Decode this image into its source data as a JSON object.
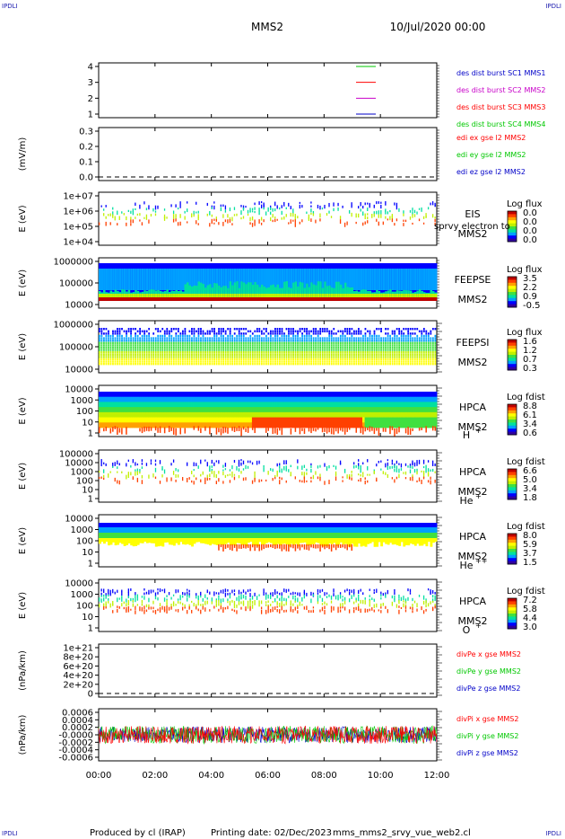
{
  "header": {
    "corner_tl": "IPDLI",
    "corner_tr": "IPDLI",
    "corner_bl": "IPDLI",
    "corner_br": "IPDLI",
    "title": "MMS2",
    "date": "10/Jul/2020 00:00"
  },
  "footer": {
    "produced_by": "Produced by cl (IRAP)",
    "printing_date": "Printing date: 02/Dec/2023",
    "filename": "mms_mms2_srvy_vue_web2.cl"
  },
  "colors": {
    "black": "#000000",
    "red": "#ff0000",
    "green": "#00c800",
    "blue": "#0000c8",
    "magenta": "#c800c8",
    "spectrum": [
      "#3000a0",
      "#0000ff",
      "#00a0ff",
      "#00e0a0",
      "#40e040",
      "#c0f000",
      "#ffff00",
      "#ffa000",
      "#ff4000",
      "#c00000"
    ]
  },
  "chart_data": [
    {
      "id": "desdist",
      "type": "line",
      "title": "",
      "yticks": [
        "1",
        "2",
        "3",
        "4"
      ],
      "ylabel": "",
      "xrange": [
        "00:00",
        "12:00"
      ],
      "series": [
        {
          "name": "des dist burst SC1 MMS1",
          "color": "green",
          "level": 4
        },
        {
          "name": "des dist burst SC2 MMS2",
          "color": "red",
          "level": 3
        },
        {
          "name": "des dist burst SC3 MMS3",
          "color": "magenta",
          "level": 2
        },
        {
          "name": "des dist burst SC4 MMS4",
          "color": "blue",
          "level": 1
        }
      ],
      "legend_colors": [
        "blue",
        "magenta",
        "red",
        "green"
      ]
    },
    {
      "id": "edi",
      "type": "line",
      "ylabel": "(mV/m)",
      "yticks": [
        "0.0",
        "0.1",
        "0.2",
        "0.3"
      ],
      "ylim": [
        0.0,
        0.3
      ],
      "dashed_zero": true,
      "series": [
        {
          "name": "edi ex gse l2 MMS2",
          "color": "red"
        },
        {
          "name": "edi ey gse l2 MMS2",
          "color": "green"
        },
        {
          "name": "edi ez gse l2 MMS2",
          "color": "blue"
        }
      ]
    },
    {
      "id": "eis",
      "type": "heatmap",
      "ylabel": "E (eV)",
      "yticks": [
        "1e+04",
        "1e+05",
        "1e+06",
        "1e+07"
      ],
      "scale": "log",
      "labels": [
        "EIS",
        "MMS2"
      ],
      "overlay_text": "sprvy electron to",
      "colorbar": {
        "title": "Log flux",
        "ticks": [
          "0.0",
          "0.0",
          "0.0",
          "0.0"
        ]
      }
    },
    {
      "id": "feepse",
      "type": "heatmap",
      "ylabel": "E (eV)",
      "yticks": [
        "10000",
        "100000",
        "1000000"
      ],
      "scale": "log",
      "labels": [
        "FEEPSE",
        "MMS2"
      ],
      "colorbar": {
        "title": "Log flux",
        "ticks": [
          "3.5",
          "2.2",
          "0.9",
          "-0.5"
        ]
      }
    },
    {
      "id": "feepsi",
      "type": "heatmap",
      "ylabel": "E (eV)",
      "yticks": [
        "10000",
        "100000",
        "1000000"
      ],
      "scale": "log",
      "labels": [
        "FEEPSI",
        "MMS2"
      ],
      "colorbar": {
        "title": "Log flux",
        "ticks": [
          "1.6",
          "1.2",
          "0.7",
          "0.3"
        ]
      }
    },
    {
      "id": "hpca_h",
      "type": "heatmap",
      "ylabel": "E (eV)",
      "yticks": [
        "1",
        "10",
        "100",
        "1000",
        "10000"
      ],
      "scale": "log",
      "labels": [
        "HPCA",
        "MMS2",
        "H"
      ],
      "species_sup": "+",
      "colorbar": {
        "title": "Log fdist",
        "ticks": [
          "8.8",
          "6.1",
          "3.4",
          "0.6"
        ]
      }
    },
    {
      "id": "hpca_he",
      "type": "heatmap",
      "ylabel": "E (eV)",
      "yticks": [
        "1",
        "10",
        "100",
        "1000",
        "10000",
        "100000"
      ],
      "scale": "log",
      "labels": [
        "HPCA",
        "MMS2",
        "He"
      ],
      "species_sup": "+",
      "colorbar": {
        "title": "Log fdist",
        "ticks": [
          "6.6",
          "5.0",
          "3.4",
          "1.8"
        ]
      }
    },
    {
      "id": "hpca_he2",
      "type": "heatmap",
      "ylabel": "E (eV)",
      "yticks": [
        "1",
        "10",
        "100",
        "1000",
        "10000"
      ],
      "scale": "log",
      "labels": [
        "HPCA",
        "MMS2",
        "He"
      ],
      "species_sup": "++",
      "colorbar": {
        "title": "Log fdist",
        "ticks": [
          "8.0",
          "5.9",
          "3.7",
          "1.5"
        ]
      }
    },
    {
      "id": "hpca_o",
      "type": "heatmap",
      "ylabel": "E (eV)",
      "yticks": [
        "1",
        "10",
        "100",
        "1000",
        "10000"
      ],
      "scale": "log",
      "labels": [
        "HPCA",
        "MMS2",
        "O"
      ],
      "species_sup": "+",
      "colorbar": {
        "title": "Log fdist",
        "ticks": [
          "7.2",
          "5.8",
          "4.4",
          "3.0"
        ]
      }
    },
    {
      "id": "divpe",
      "type": "line",
      "ylabel": "(nPa/km)",
      "yticks": [
        "0",
        "2e+20",
        "4e+20",
        "6e+20",
        "8e+20",
        "1e+21"
      ],
      "ylim": [
        0,
        1e+21
      ],
      "dashed_zero": true,
      "series": [
        {
          "name": "divPe x gse MMS2",
          "color": "red"
        },
        {
          "name": "divPe y gse MMS2",
          "color": "green"
        },
        {
          "name": "divPe z gse MMS2",
          "color": "blue"
        }
      ]
    },
    {
      "id": "divpi",
      "type": "line",
      "ylabel": "(nPa/km)",
      "yticks": [
        "-0.0006",
        "-0.0004",
        "-0.0002",
        "-0.0000",
        "0.0002",
        "0.0004",
        "0.0006"
      ],
      "ylim": [
        -0.0006,
        0.0006
      ],
      "series": [
        {
          "name": "divPi x gse MMS2",
          "color": "red"
        },
        {
          "name": "divPi y gse MMS2",
          "color": "green"
        },
        {
          "name": "divPi z gse MMS2",
          "color": "blue"
        }
      ]
    }
  ],
  "xaxis": {
    "ticks": [
      "00:00",
      "02:00",
      "04:00",
      "06:00",
      "08:00",
      "10:00",
      "12:00"
    ]
  }
}
